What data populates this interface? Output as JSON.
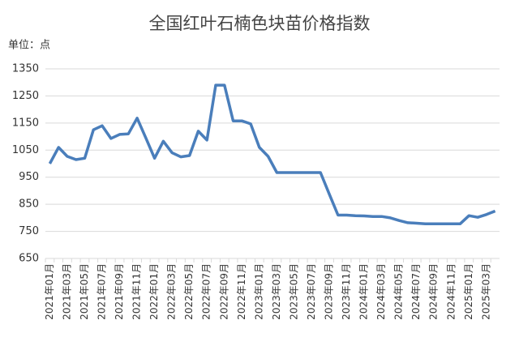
{
  "chart_data": {
    "type": "line",
    "title": "全国红叶石楠色块苗价格指数",
    "y_unit": "单位：点",
    "categories": [
      "2021年01月",
      null,
      "2021年03月",
      null,
      "2021年05月",
      null,
      "2021年07月",
      null,
      "2021年09月",
      null,
      "2021年11月",
      null,
      "2022年01月",
      null,
      "2022年03月",
      null,
      "2022年05月",
      null,
      "2022年07月",
      null,
      "2022年09月",
      null,
      "2022年11月",
      null,
      "2023年01月",
      null,
      "2023年03月",
      null,
      "2023年05月",
      null,
      "2023年07月",
      null,
      "2023年09月",
      null,
      "2023年11月",
      null,
      "2024年01月",
      null,
      "2024年03月",
      null,
      "2024年05月",
      null,
      "2024年07月",
      null,
      "2024年09月",
      null,
      "2024年11月",
      null,
      "2025年01月",
      null,
      "2025年03月",
      null
    ],
    "series": [
      {
        "color": "#4a7ebb",
        "values": [
          1000,
          1060,
          1027,
          1015,
          1020,
          1125,
          1140,
          1093,
          1108,
          1110,
          1168,
          1095,
          1020,
          1083,
          1040,
          1025,
          1030,
          1120,
          1087,
          1290,
          1290,
          1158,
          1158,
          1147,
          1060,
          1027,
          967,
          967,
          967,
          967,
          967,
          967,
          888,
          810,
          810,
          808,
          807,
          805,
          805,
          800,
          790,
          782,
          780,
          778,
          778,
          778,
          778,
          778,
          808,
          802,
          812,
          825
        ]
      }
    ],
    "ylim": [
      650,
      1350
    ],
    "yticks": [
      650,
      750,
      850,
      950,
      1050,
      1150,
      1250,
      1350
    ],
    "grid": true
  }
}
